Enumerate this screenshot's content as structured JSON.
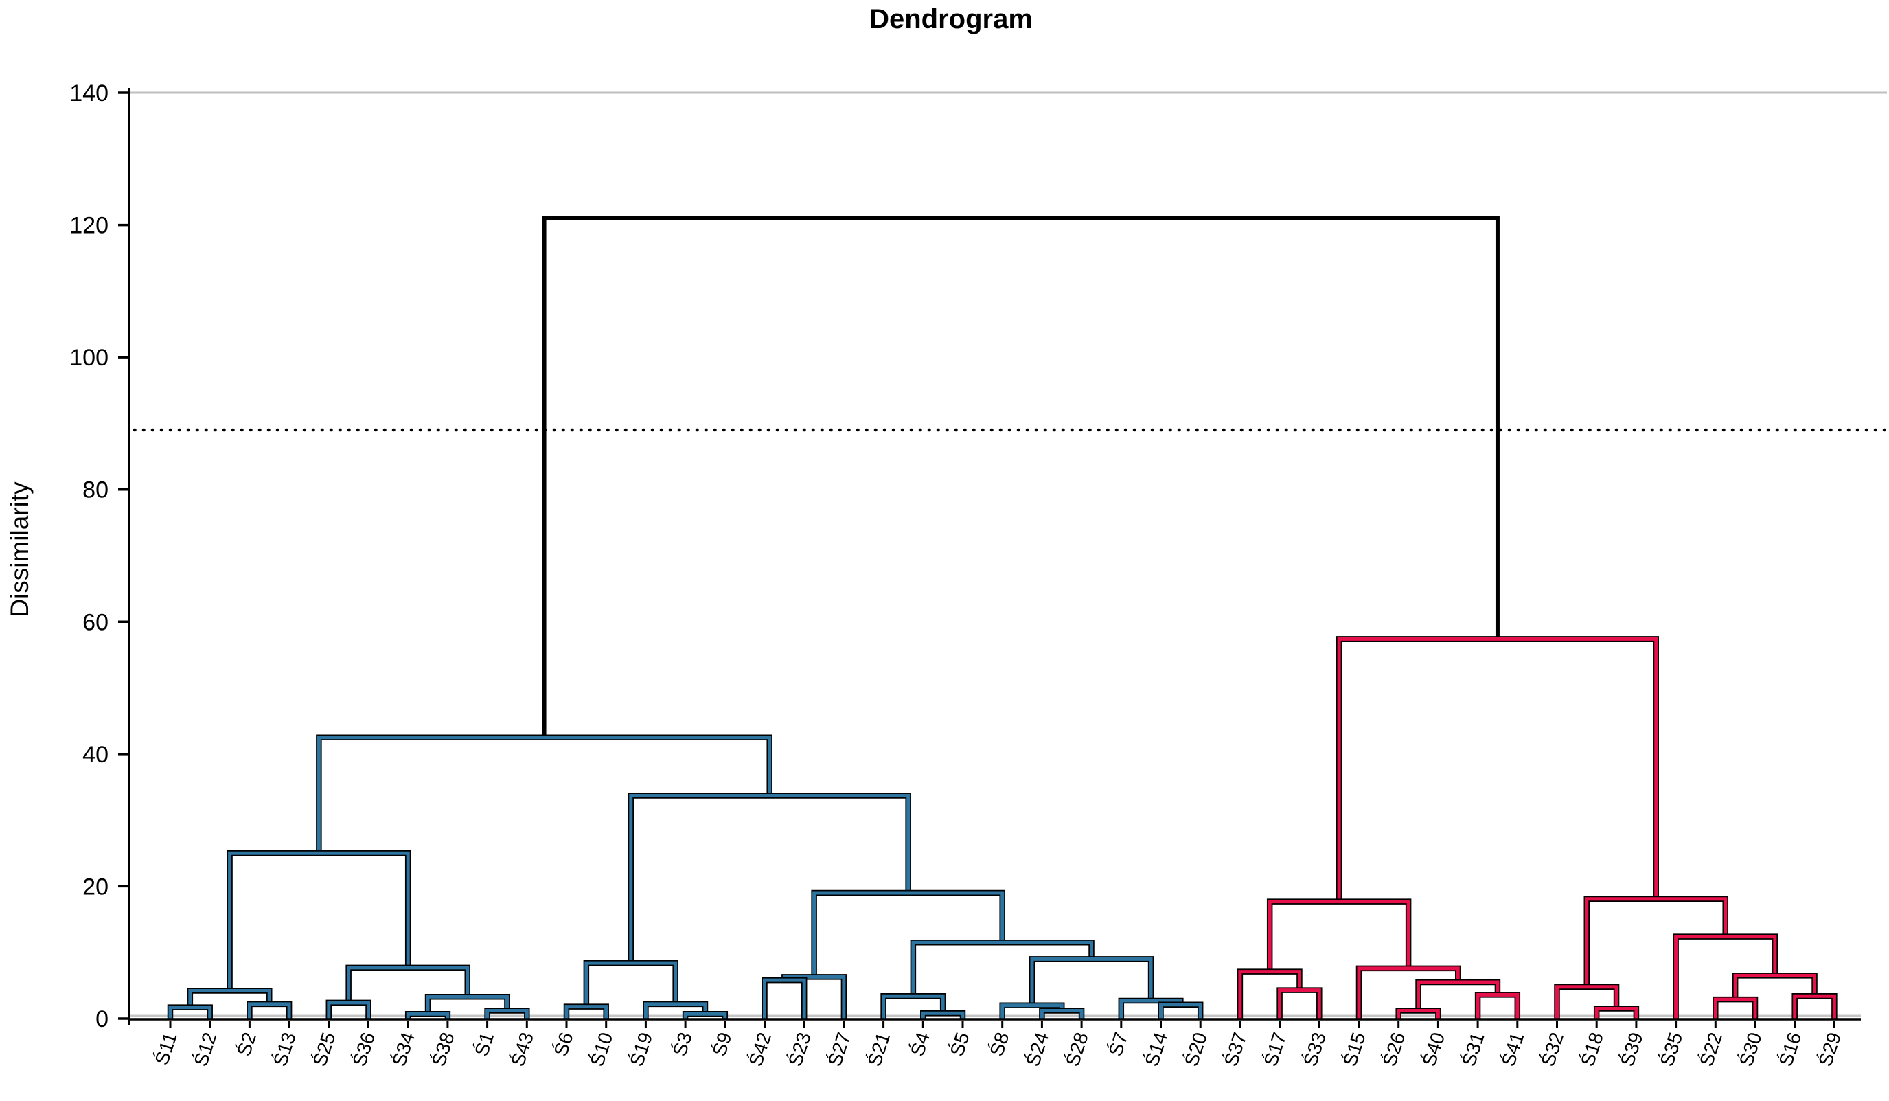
{
  "title": "Dendrogram",
  "y_axis": {
    "label": "Dissimilarity",
    "ticks": [
      0,
      20,
      40,
      60,
      80,
      100,
      120,
      140
    ],
    "max": 140
  },
  "threshold_line": {
    "value": 89,
    "style": "dotted"
  },
  "colors": {
    "cluster_left": "#2E74A0",
    "cluster_right": "#E6114B",
    "root_link": "#000000",
    "frame_gray": "#BFBFBF",
    "baseline_gray": "#C6C6C6"
  },
  "chart_data": {
    "type": "dendrogram",
    "title": "Dendrogram",
    "ylabel": "Dissimilarity",
    "ylim": [
      0,
      140
    ],
    "yticks": [
      0,
      20,
      40,
      60,
      80,
      100,
      120,
      140
    ],
    "cutoff_line": 89,
    "grid": false,
    "leaf_order": [
      "Ś11",
      "Ś12",
      "Ś2",
      "Ś13",
      "Ś25",
      "Ś36",
      "Ś34",
      "Ś38",
      "Ś1",
      "Ś43",
      "Ś6",
      "Ś10",
      "Ś19",
      "Ś3",
      "Ś9",
      "Ś42",
      "Ś23",
      "Ś27",
      "Ś21",
      "Ś4",
      "Ś5",
      "Ś8",
      "Ś24",
      "Ś28",
      "Ś7",
      "Ś14",
      "Ś20",
      "Ś37",
      "Ś17",
      "Ś33",
      "Ś15",
      "Ś26",
      "Ś40",
      "Ś31",
      "Ś41",
      "Ś32",
      "Ś18",
      "Ś39",
      "Ś35",
      "Ś22",
      "Ś30",
      "Ś16",
      "Ś29"
    ],
    "root_merge_height": 121,
    "tree": {
      "h": 121,
      "c": "#000000",
      "children": [
        {
          "h": 42.5,
          "c": "#2E74A0",
          "children": [
            {
              "h": 25,
              "c": "#2E74A0",
              "children": [
                {
                  "h": 4.2,
                  "c": "#2E74A0",
                  "children": [
                    {
                      "h": 1.7,
                      "c": "#2E74A0",
                      "children": [
                        {
                          "label": "Ś11"
                        },
                        {
                          "label": "Ś12"
                        }
                      ]
                    },
                    {
                      "h": 2.2,
                      "c": "#2E74A0",
                      "children": [
                        {
                          "label": "Ś2"
                        },
                        {
                          "label": "Ś13"
                        }
                      ]
                    }
                  ]
                },
                {
                  "h": 7.7,
                  "c": "#2E74A0",
                  "children": [
                    {
                      "h": 2.4,
                      "c": "#2E74A0",
                      "children": [
                        {
                          "label": "Ś25"
                        },
                        {
                          "label": "Ś36"
                        }
                      ]
                    },
                    {
                      "h": 3.3,
                      "c": "#2E74A0",
                      "children": [
                        {
                          "h": 0.7,
                          "c": "#2E74A0",
                          "children": [
                            {
                              "label": "Ś34"
                            },
                            {
                              "label": "Ś38"
                            }
                          ]
                        },
                        {
                          "h": 1.2,
                          "c": "#2E74A0",
                          "children": [
                            {
                              "label": "Ś1"
                            },
                            {
                              "label": "Ś43"
                            }
                          ]
                        }
                      ]
                    }
                  ]
                }
              ]
            },
            {
              "h": 33.7,
              "c": "#2E74A0",
              "children": [
                {
                  "h": 8.4,
                  "c": "#2E74A0",
                  "children": [
                    {
                      "h": 1.8,
                      "c": "#2E74A0",
                      "children": [
                        {
                          "label": "Ś6"
                        },
                        {
                          "label": "Ś10"
                        }
                      ]
                    },
                    {
                      "h": 2.2,
                      "c": "#2E74A0",
                      "children": [
                        {
                          "label": "Ś19"
                        },
                        {
                          "h": 0.7,
                          "c": "#2E74A0",
                          "children": [
                            {
                              "label": "Ś3"
                            },
                            {
                              "label": "Ś9"
                            }
                          ]
                        }
                      ]
                    }
                  ]
                },
                {
                  "h": 19,
                  "c": "#2E74A0",
                  "children": [
                    {
                      "h": 6.3,
                      "c": "#2E74A0",
                      "children": [
                        {
                          "h": 5.8,
                          "c": "#2E74A0",
                          "children": [
                            {
                              "label": "Ś42"
                            },
                            {
                              "label": "Ś23"
                            }
                          ]
                        },
                        {
                          "label": "Ś27"
                        }
                      ]
                    },
                    {
                      "h": 11.5,
                      "c": "#2E74A0",
                      "children": [
                        {
                          "h": 3.4,
                          "c": "#2E74A0",
                          "children": [
                            {
                              "label": "Ś21"
                            },
                            {
                              "h": 0.8,
                              "c": "#2E74A0",
                              "children": [
                                {
                                  "label": "Ś4"
                                },
                                {
                                  "label": "Ś5"
                                }
                              ]
                            }
                          ]
                        },
                        {
                          "h": 9,
                          "c": "#2E74A0",
                          "children": [
                            {
                              "h": 2,
                              "c": "#2E74A0",
                              "children": [
                                {
                                  "label": "Ś8"
                                },
                                {
                                  "h": 1.2,
                                  "c": "#2E74A0",
                                  "children": [
                                    {
                                      "label": "Ś24"
                                    },
                                    {
                                      "label": "Ś28"
                                    }
                                  ]
                                }
                              ]
                            },
                            {
                              "h": 2.7,
                              "c": "#2E74A0",
                              "children": [
                                {
                                  "label": "Ś7"
                                },
                                {
                                  "h": 2.1,
                                  "c": "#2E74A0",
                                  "children": [
                                    {
                                      "label": "Ś14"
                                    },
                                    {
                                      "label": "Ś20"
                                    }
                                  ]
                                }
                              ]
                            }
                          ]
                        }
                      ]
                    }
                  ]
                }
              ]
            }
          ]
        },
        {
          "h": 57.4,
          "c": "#E6114B",
          "children": [
            {
              "h": 17.7,
              "c": "#E6114B",
              "children": [
                {
                  "h": 7.1,
                  "c": "#E6114B",
                  "children": [
                    {
                      "label": "Ś37"
                    },
                    {
                      "h": 4.3,
                      "c": "#E6114B",
                      "children": [
                        {
                          "label": "Ś17"
                        },
                        {
                          "label": "Ś33"
                        }
                      ]
                    }
                  ]
                },
                {
                  "h": 7.6,
                  "c": "#E6114B",
                  "children": [
                    {
                      "label": "Ś15"
                    },
                    {
                      "h": 5.5,
                      "c": "#E6114B",
                      "children": [
                        {
                          "h": 1.2,
                          "c": "#E6114B",
                          "children": [
                            {
                              "label": "Ś26"
                            },
                            {
                              "label": "Ś40"
                            }
                          ]
                        },
                        {
                          "h": 3.6,
                          "c": "#E6114B",
                          "children": [
                            {
                              "label": "Ś31"
                            },
                            {
                              "label": "Ś41"
                            }
                          ]
                        }
                      ]
                    }
                  ]
                }
              ]
            },
            {
              "h": 18.1,
              "c": "#E6114B",
              "children": [
                {
                  "h": 4.8,
                  "c": "#E6114B",
                  "children": [
                    {
                      "label": "Ś32"
                    },
                    {
                      "h": 1.5,
                      "c": "#E6114B",
                      "children": [
                        {
                          "label": "Ś18"
                        },
                        {
                          "label": "Ś39"
                        }
                      ]
                    }
                  ]
                },
                {
                  "h": 12.4,
                  "c": "#E6114B",
                  "children": [
                    {
                      "label": "Ś35"
                    },
                    {
                      "h": 6.5,
                      "c": "#E6114B",
                      "children": [
                        {
                          "h": 2.9,
                          "c": "#E6114B",
                          "children": [
                            {
                              "label": "Ś22"
                            },
                            {
                              "label": "Ś30"
                            }
                          ]
                        },
                        {
                          "h": 3.4,
                          "c": "#E6114B",
                          "children": [
                            {
                              "label": "Ś16"
                            },
                            {
                              "label": "Ś29"
                            }
                          ]
                        }
                      ]
                    }
                  ]
                }
              ]
            }
          ]
        }
      ]
    }
  }
}
